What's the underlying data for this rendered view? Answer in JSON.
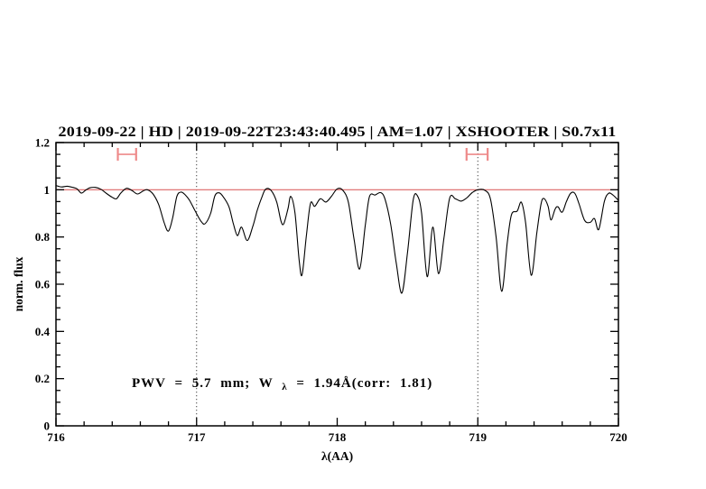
{
  "figure": {
    "background": "#ffffff"
  },
  "chart_data": {
    "type": "line",
    "title": "2019-09-22 | HD | 2019-09-22T23:43:40.495 | AM=1.07 | XSHOOTER | S0.7x11",
    "title_color": "#1414d2",
    "xlabel": "λ(AA)",
    "ylabel": "norm. flux",
    "xlim": [
      716,
      720
    ],
    "ylim": [
      0,
      1.2
    ],
    "grid": false,
    "x_major_ticks": [
      716,
      717,
      718,
      719,
      720
    ],
    "x_tick_labels": [
      "716",
      "717",
      "718",
      "719",
      "720"
    ],
    "x_minor_step": 0.2,
    "y_major_ticks": [
      0,
      0.2,
      0.4,
      0.6,
      0.8,
      1.0,
      1.2
    ],
    "y_tick_labels": [
      "0",
      "0.2",
      "0.4",
      "0.6",
      "0.8",
      "1",
      "1.2"
    ],
    "y_minor_step": 0.05,
    "continuum_line": {
      "y": 1.0,
      "color": "#dd6666"
    },
    "vlines": [
      {
        "x": 717,
        "style": "dotted",
        "color": "#404040"
      },
      {
        "x": 719,
        "style": "dotted",
        "color": "#404040"
      }
    ],
    "range_markers": [
      {
        "x1": 716.44,
        "x2": 716.57,
        "y": 1.15,
        "cap_half": 0.027,
        "color": "#ee8a8a"
      },
      {
        "x1": 718.92,
        "x2": 719.07,
        "y": 1.15,
        "cap_half": 0.027,
        "color": "#ee8a8a"
      }
    ],
    "annotation": {
      "parts": [
        "PWV = 5.7 mm; W",
        "λ",
        " = 1.94Å(corr: 1.81)"
      ],
      "color": "#1414d2"
    },
    "series": [
      {
        "name": "telluric-spectrum",
        "color": "#000000",
        "points": [
          [
            716.0,
            1.018
          ],
          [
            716.04,
            1.012
          ],
          [
            716.08,
            1.015
          ],
          [
            716.12,
            1.01
          ],
          [
            716.15,
            1.004
          ],
          [
            716.18,
            0.986
          ],
          [
            716.21,
            0.998
          ],
          [
            716.24,
            1.008
          ],
          [
            716.28,
            1.01
          ],
          [
            716.32,
            1.002
          ],
          [
            716.36,
            0.984
          ],
          [
            716.4,
            0.968
          ],
          [
            716.43,
            0.962
          ],
          [
            716.46,
            0.985
          ],
          [
            716.5,
            1.006
          ],
          [
            716.54,
            0.997
          ],
          [
            716.58,
            0.982
          ],
          [
            716.62,
            0.995
          ],
          [
            716.65,
            1.0
          ],
          [
            716.69,
            0.982
          ],
          [
            716.73,
            0.938
          ],
          [
            716.77,
            0.86
          ],
          [
            716.8,
            0.825
          ],
          [
            716.83,
            0.882
          ],
          [
            716.86,
            0.972
          ],
          [
            716.89,
            0.99
          ],
          [
            716.92,
            0.978
          ],
          [
            716.95,
            0.955
          ],
          [
            716.99,
            0.91
          ],
          [
            717.03,
            0.868
          ],
          [
            717.06,
            0.856
          ],
          [
            717.1,
            0.9
          ],
          [
            717.13,
            0.974
          ],
          [
            717.16,
            0.987
          ],
          [
            717.19,
            0.97
          ],
          [
            717.23,
            0.928
          ],
          [
            717.26,
            0.86
          ],
          [
            717.29,
            0.806
          ],
          [
            717.32,
            0.842
          ],
          [
            717.36,
            0.785
          ],
          [
            717.4,
            0.845
          ],
          [
            717.43,
            0.91
          ],
          [
            717.46,
            0.962
          ],
          [
            717.49,
            1.002
          ],
          [
            717.53,
            0.997
          ],
          [
            717.57,
            0.948
          ],
          [
            717.6,
            0.868
          ],
          [
            717.62,
            0.856
          ],
          [
            717.65,
            0.92
          ],
          [
            717.67,
            0.972
          ],
          [
            717.7,
            0.9
          ],
          [
            717.73,
            0.7
          ],
          [
            717.75,
            0.64
          ],
          [
            717.78,
            0.8
          ],
          [
            717.81,
            0.942
          ],
          [
            717.84,
            0.93
          ],
          [
            717.88,
            0.962
          ],
          [
            717.92,
            0.948
          ],
          [
            717.96,
            0.973
          ],
          [
            718.0,
            1.004
          ],
          [
            718.04,
            0.998
          ],
          [
            718.08,
            0.945
          ],
          [
            718.12,
            0.79
          ],
          [
            718.16,
            0.665
          ],
          [
            718.2,
            0.852
          ],
          [
            718.23,
            0.972
          ],
          [
            718.27,
            0.978
          ],
          [
            718.31,
            0.988
          ],
          [
            718.34,
            0.96
          ],
          [
            718.38,
            0.855
          ],
          [
            718.42,
            0.69
          ],
          [
            718.46,
            0.562
          ],
          [
            718.5,
            0.735
          ],
          [
            718.54,
            0.955
          ],
          [
            718.57,
            0.975
          ],
          [
            718.6,
            0.9
          ],
          [
            718.64,
            0.632
          ],
          [
            718.68,
            0.842
          ],
          [
            718.72,
            0.645
          ],
          [
            718.76,
            0.8
          ],
          [
            718.8,
            0.965
          ],
          [
            718.84,
            0.962
          ],
          [
            718.88,
            0.952
          ],
          [
            718.92,
            0.965
          ],
          [
            718.96,
            0.988
          ],
          [
            719.0,
            1.0
          ],
          [
            719.05,
            0.998
          ],
          [
            719.09,
            0.96
          ],
          [
            719.13,
            0.8
          ],
          [
            719.17,
            0.57
          ],
          [
            719.21,
            0.78
          ],
          [
            719.24,
            0.895
          ],
          [
            719.28,
            0.91
          ],
          [
            719.31,
            0.947
          ],
          [
            719.34,
            0.86
          ],
          [
            719.38,
            0.638
          ],
          [
            719.42,
            0.82
          ],
          [
            719.45,
            0.94
          ],
          [
            719.47,
            0.963
          ],
          [
            719.5,
            0.93
          ],
          [
            719.52,
            0.872
          ],
          [
            719.55,
            0.918
          ],
          [
            719.57,
            0.928
          ],
          [
            719.6,
            0.905
          ],
          [
            719.63,
            0.95
          ],
          [
            719.66,
            0.985
          ],
          [
            719.69,
            0.985
          ],
          [
            719.72,
            0.94
          ],
          [
            719.76,
            0.87
          ],
          [
            719.8,
            0.862
          ],
          [
            719.83,
            0.878
          ],
          [
            719.86,
            0.832
          ],
          [
            719.9,
            0.95
          ],
          [
            719.93,
            0.985
          ],
          [
            719.96,
            0.978
          ],
          [
            720.0,
            0.955
          ]
        ]
      }
    ]
  }
}
